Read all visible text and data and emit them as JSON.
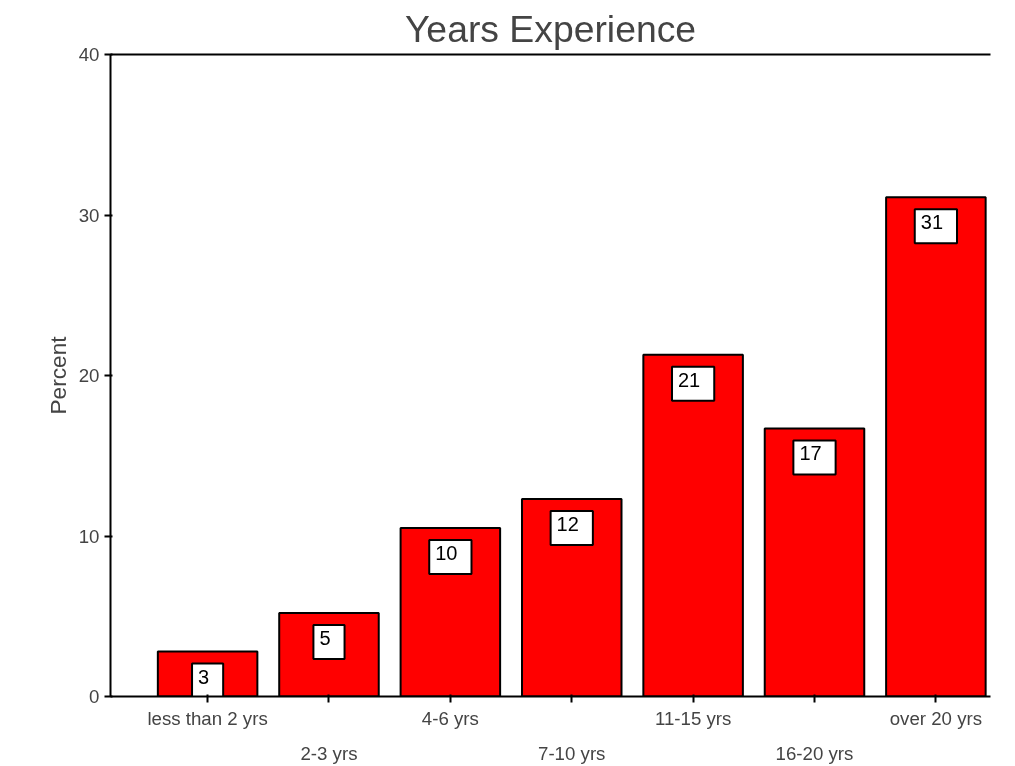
{
  "chart_data": {
    "type": "bar",
    "title": "Years Experience",
    "ylabel": "Percent",
    "categories": [
      "less than 2 yrs",
      "2-3 yrs",
      "4-6 yrs",
      "7-10 yrs",
      "11-15 yrs",
      "16-20 yrs",
      "over 20 yrs"
    ],
    "values": [
      2.8,
      5.2,
      10.5,
      12.3,
      21.3,
      16.7,
      31.1
    ],
    "value_labels": [
      "3",
      "5",
      "10",
      "12",
      "21",
      "17",
      "31"
    ],
    "color": "#ff0000",
    "ylim": [
      0,
      40
    ],
    "yticks": [
      0,
      10,
      20,
      30,
      40
    ],
    "grid": false
  }
}
